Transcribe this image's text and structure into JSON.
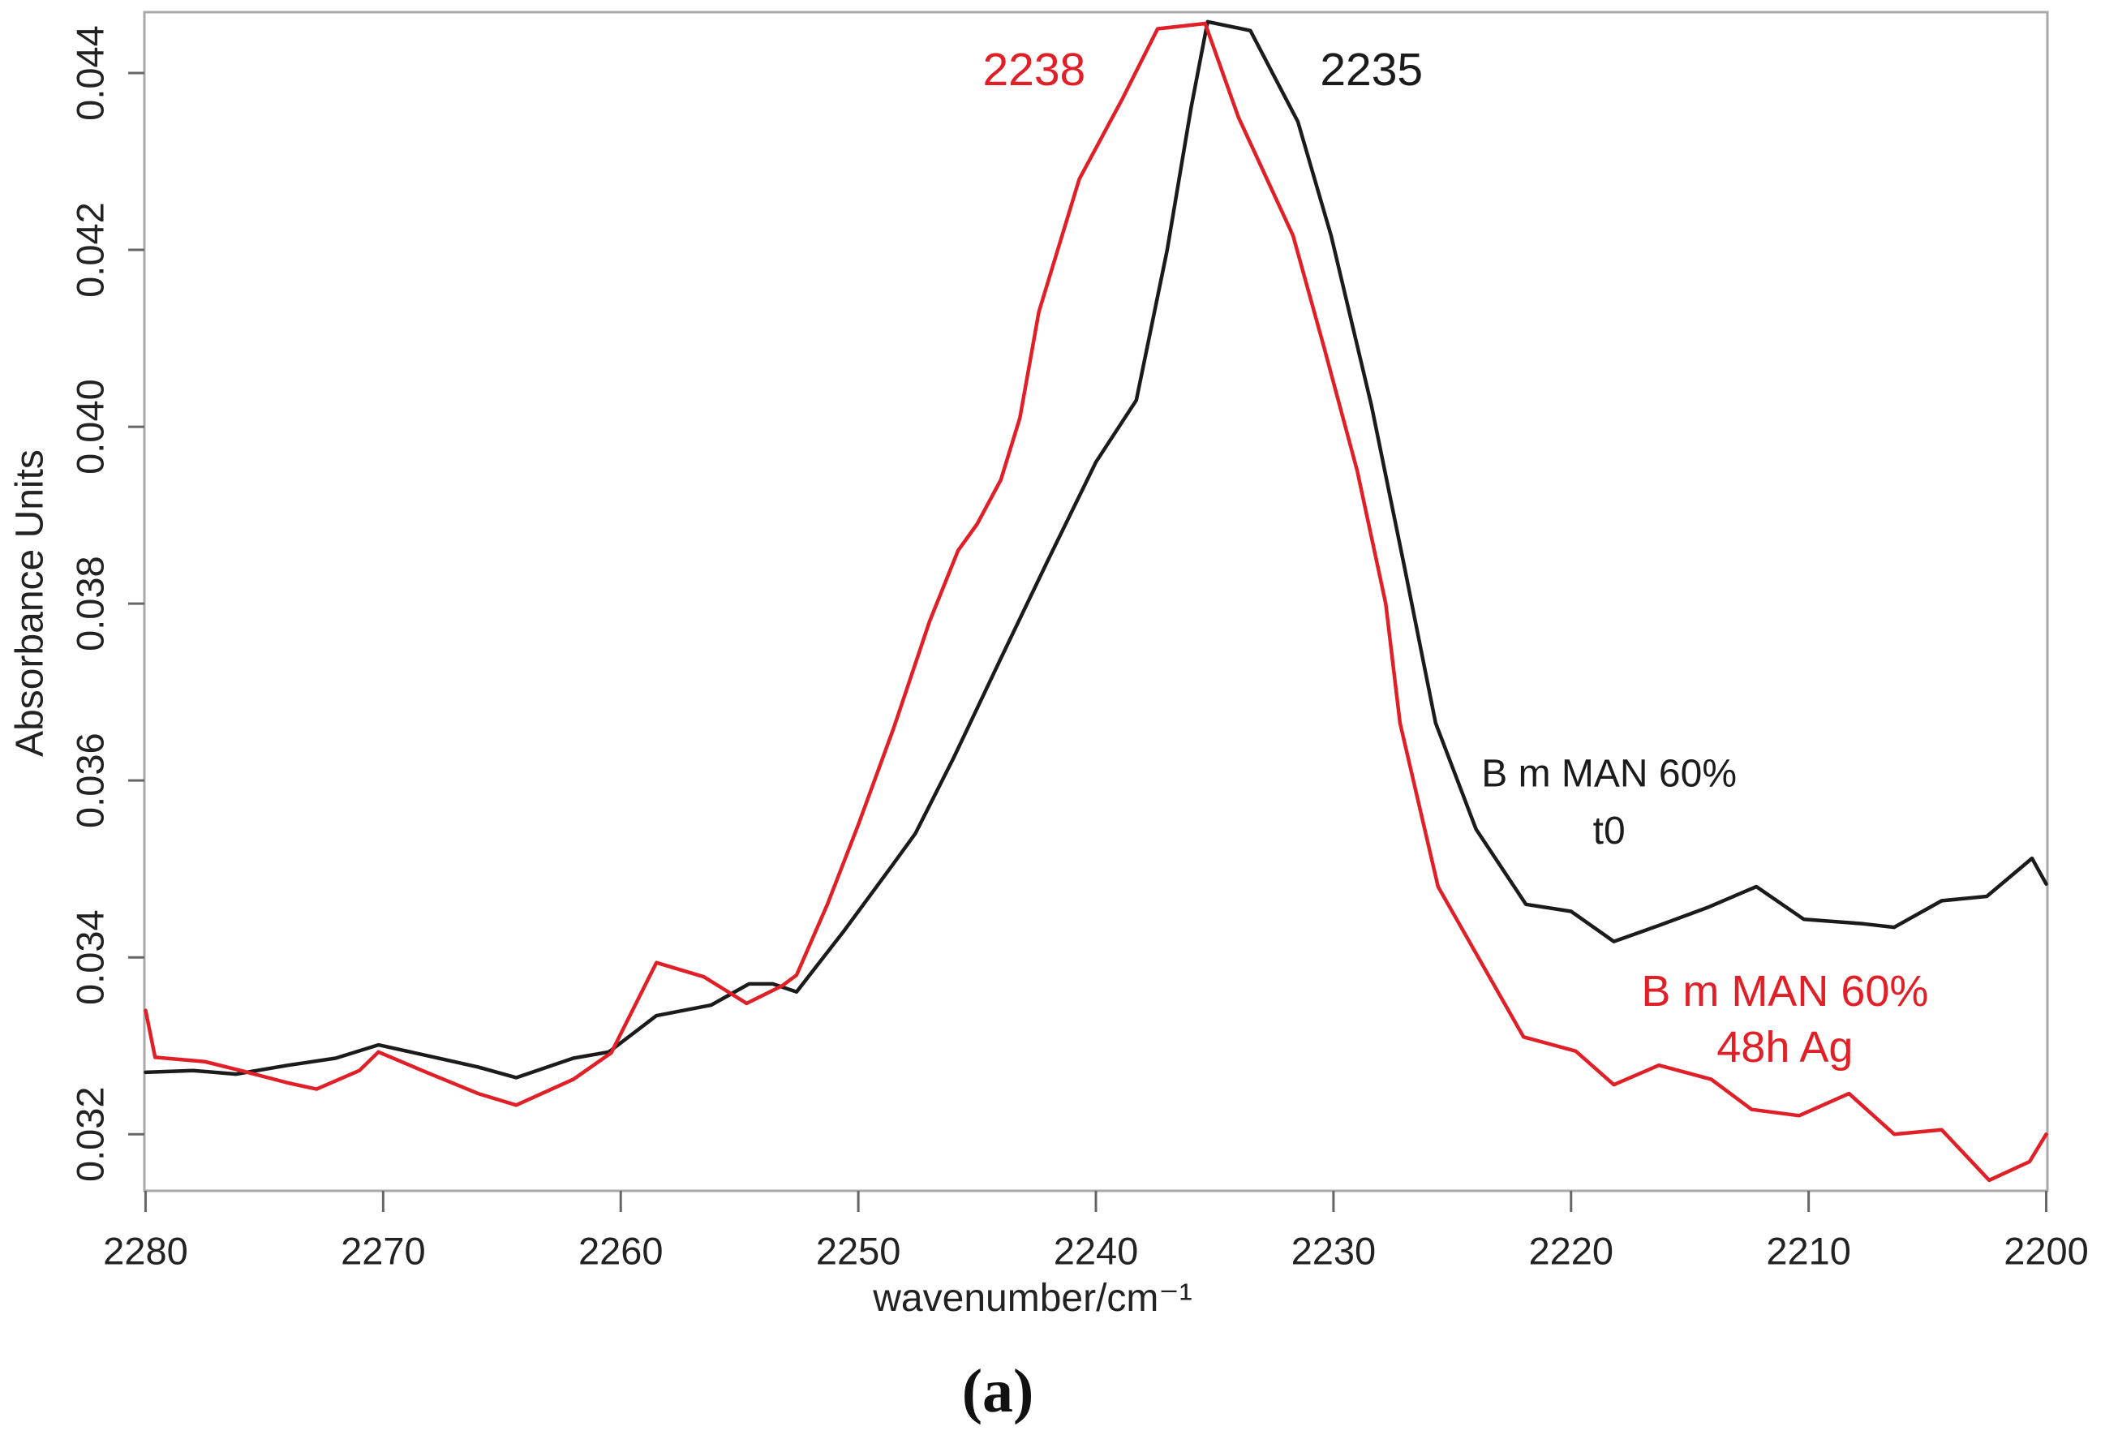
{
  "figure": {
    "caption": "(a)"
  },
  "colors": {
    "series_black": "#1b1b1b",
    "series_red": "#e01f26",
    "frame": "#a9a9a9",
    "tick": "#666666",
    "text": "#222222"
  },
  "chart_data": {
    "type": "line",
    "title": "",
    "xlabel": "wavenumber/cm⁻¹",
    "ylabel": "Absorbance Units",
    "grid": false,
    "legend_position": "in-plot text annotations",
    "x_axis": {
      "reversed": true,
      "range": [
        2280.05,
        2199.95
      ],
      "ticks": [
        2280,
        2270,
        2260,
        2250,
        2240,
        2230,
        2220,
        2210,
        2200
      ],
      "tick_labels": [
        "2280",
        "2270",
        "2260",
        "2250",
        "2240",
        "2230",
        "2220",
        "2210",
        "2200"
      ]
    },
    "y_axis": {
      "range": [
        0.03136,
        0.044688
      ],
      "ticks": [
        0.044,
        0.042,
        0.04,
        0.038,
        0.036,
        0.034,
        0.032
      ],
      "tick_labels": [
        "0.044",
        "0.042",
        "0.040",
        "0.038",
        "0.036",
        "0.034",
        "0.032"
      ]
    },
    "series": [
      {
        "name": "B m MAN 60% t0",
        "color": "#1b1b1b",
        "peak_wavenumber": 2235,
        "points": [
          [
            2280.0,
            0.0327
          ],
          [
            2278.0,
            0.03272
          ],
          [
            2276.2,
            0.03268
          ],
          [
            2274.0,
            0.03278
          ],
          [
            2272.0,
            0.03286
          ],
          [
            2270.2,
            0.03301
          ],
          [
            2268.0,
            0.03288
          ],
          [
            2266.0,
            0.03276
          ],
          [
            2264.4,
            0.03264
          ],
          [
            2262.0,
            0.03286
          ],
          [
            2260.5,
            0.03293
          ],
          [
            2258.5,
            0.03334
          ],
          [
            2256.2,
            0.03346
          ],
          [
            2254.6,
            0.0337
          ],
          [
            2253.6,
            0.0337
          ],
          [
            2252.6,
            0.03361
          ],
          [
            2250.6,
            0.0343
          ],
          [
            2248.6,
            0.03503
          ],
          [
            2247.6,
            0.0354
          ],
          [
            2246.0,
            0.03625
          ],
          [
            2244.0,
            0.03738
          ],
          [
            2242.0,
            0.0385
          ],
          [
            2240.0,
            0.0396
          ],
          [
            2238.3,
            0.0403
          ],
          [
            2237.0,
            0.042
          ],
          [
            2236.0,
            0.0436
          ],
          [
            2235.3,
            0.04458
          ],
          [
            2233.5,
            0.04448
          ],
          [
            2231.5,
            0.04345
          ],
          [
            2230.1,
            0.04216
          ],
          [
            2228.4,
            0.04024
          ],
          [
            2227.0,
            0.0384
          ],
          [
            2225.7,
            0.03665
          ],
          [
            2224.0,
            0.03545
          ],
          [
            2221.9,
            0.0346
          ],
          [
            2220.0,
            0.03452
          ],
          [
            2218.2,
            0.03418
          ],
          [
            2216.3,
            0.03436
          ],
          [
            2214.2,
            0.03457
          ],
          [
            2212.2,
            0.0348
          ],
          [
            2210.2,
            0.03443
          ],
          [
            2207.7,
            0.03438
          ],
          [
            2206.4,
            0.03434
          ],
          [
            2204.4,
            0.03464
          ],
          [
            2202.5,
            0.03469
          ],
          [
            2200.6,
            0.03512
          ],
          [
            2200.0,
            0.03483
          ]
        ]
      },
      {
        "name": "B m MAN 60% 48h Ag",
        "color": "#e01f26",
        "peak_wavenumber": 2238,
        "points": [
          [
            2280.0,
            0.0334
          ],
          [
            2279.6,
            0.03287
          ],
          [
            2277.5,
            0.03282
          ],
          [
            2276.0,
            0.03272
          ],
          [
            2274.0,
            0.03258
          ],
          [
            2272.8,
            0.03251
          ],
          [
            2271.0,
            0.03272
          ],
          [
            2270.2,
            0.03293
          ],
          [
            2268.0,
            0.03268
          ],
          [
            2266.0,
            0.03246
          ],
          [
            2264.4,
            0.03233
          ],
          [
            2262.0,
            0.03262
          ],
          [
            2260.4,
            0.03292
          ],
          [
            2258.5,
            0.03394
          ],
          [
            2256.5,
            0.03378
          ],
          [
            2254.7,
            0.03348
          ],
          [
            2253.2,
            0.03368
          ],
          [
            2252.6,
            0.0338
          ],
          [
            2251.3,
            0.0346
          ],
          [
            2250.0,
            0.0355
          ],
          [
            2248.5,
            0.0366
          ],
          [
            2247.0,
            0.0378
          ],
          [
            2245.8,
            0.0386
          ],
          [
            2245.0,
            0.0389
          ],
          [
            2244.0,
            0.0394
          ],
          [
            2243.2,
            0.0401
          ],
          [
            2242.4,
            0.0413
          ],
          [
            2240.7,
            0.0428
          ],
          [
            2238.9,
            0.0437
          ],
          [
            2237.4,
            0.0445
          ],
          [
            2235.4,
            0.04456
          ],
          [
            2234.0,
            0.0435
          ],
          [
            2231.7,
            0.04216
          ],
          [
            2230.4,
            0.0409
          ],
          [
            2229.0,
            0.0395
          ],
          [
            2227.8,
            0.038
          ],
          [
            2227.2,
            0.03665
          ],
          [
            2225.6,
            0.0348
          ],
          [
            2222.0,
            0.0331
          ],
          [
            2219.8,
            0.03294
          ],
          [
            2218.2,
            0.03256
          ],
          [
            2216.3,
            0.03278
          ],
          [
            2214.1,
            0.03262
          ],
          [
            2212.4,
            0.03228
          ],
          [
            2210.4,
            0.03221
          ],
          [
            2208.3,
            0.03246
          ],
          [
            2206.4,
            0.032
          ],
          [
            2204.4,
            0.03205
          ],
          [
            2202.4,
            0.03148
          ],
          [
            2200.7,
            0.03169
          ],
          [
            2200.0,
            0.032
          ]
        ]
      }
    ],
    "annotations": [
      {
        "text": "2238",
        "x": 2242.6,
        "y": 0.044,
        "color": "#e01f26",
        "kind": "peak",
        "name": "peak-label-red-2238"
      },
      {
        "text": "2235",
        "x": 2228.4,
        "y": 0.044,
        "color": "#1b1b1b",
        "kind": "peak",
        "name": "peak-label-black-2235"
      },
      {
        "text": "B m MAN 60%",
        "x": 2218.4,
        "y": 0.03605,
        "color": "#1b1b1b",
        "kind": "legend-black",
        "name": "legend-black-line1"
      },
      {
        "text": "t0",
        "x": 2218.4,
        "y": 0.0354,
        "color": "#1b1b1b",
        "kind": "legend-black",
        "name": "legend-black-line2"
      },
      {
        "text": "B m MAN 60%",
        "x": 2211.0,
        "y": 0.03358,
        "color": "#e01f26",
        "kind": "legend-red",
        "name": "legend-red-line1"
      },
      {
        "text": "48h Ag",
        "x": 2211.0,
        "y": 0.03295,
        "color": "#e01f26",
        "kind": "legend-red",
        "name": "legend-red-line2"
      }
    ]
  }
}
